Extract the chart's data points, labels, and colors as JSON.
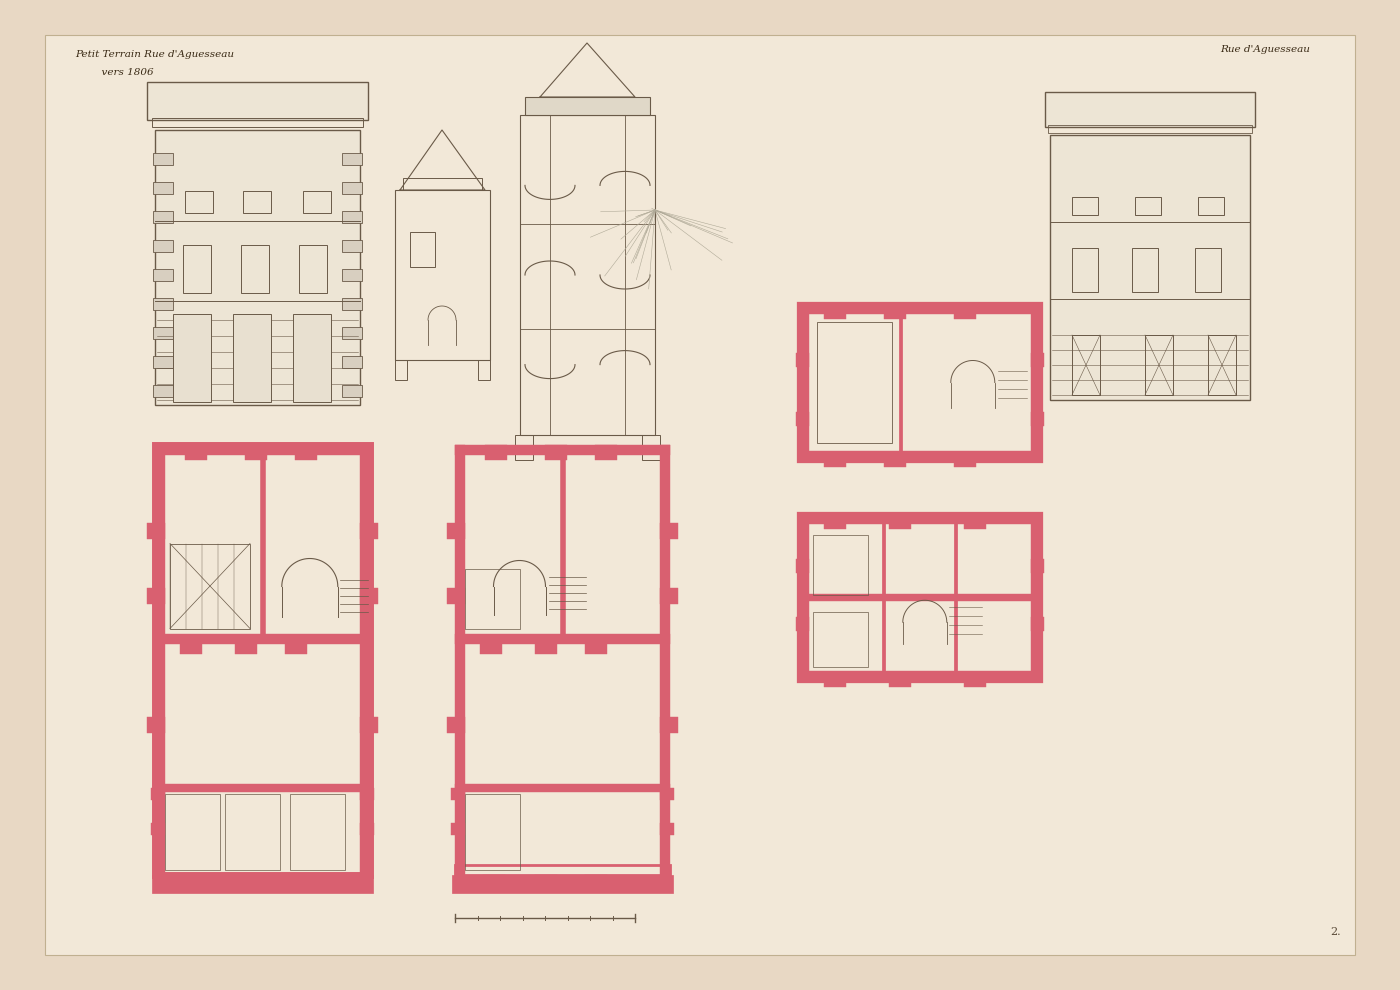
{
  "bg_color": "#e8d8c4",
  "paper_color": "#f2e8d8",
  "line_color": "#6a5a48",
  "pink_color": "#d96070",
  "title_left_line1": "Petit Terrain Rue d'Aguesseau",
  "title_left_line2": "  vers 1806",
  "title_right": "Rue d'Aguesseau",
  "fig_width": 14.0,
  "fig_height": 9.9
}
